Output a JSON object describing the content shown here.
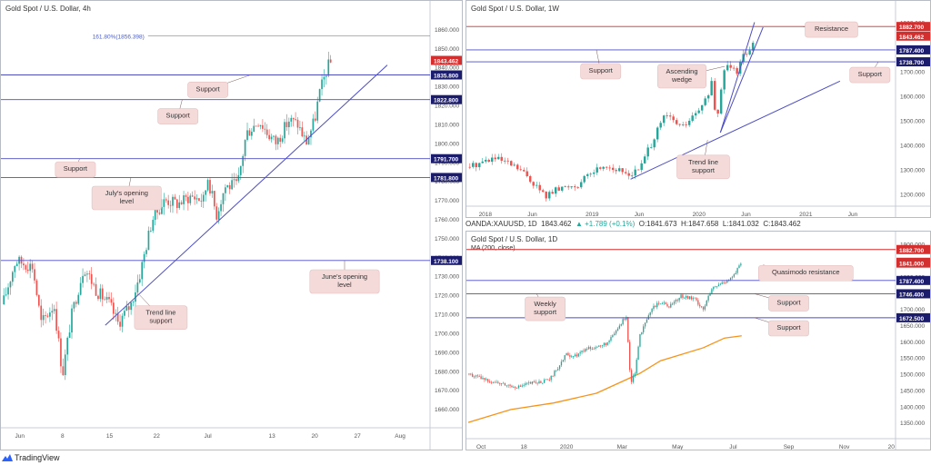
{
  "ohlc": {
    "symbol": "OANDA:XAUUSD, 1D",
    "price": "1843.462",
    "change": "▲ +1.789 (+0.1%)",
    "o": "O:1841.673",
    "h": "H:1847.658",
    "l": "L:1841.032",
    "c": "C:1843.462"
  },
  "footer": {
    "brand": "TradingView"
  },
  "colors": {
    "up": "#26a69a",
    "down": "#ef5350",
    "level": "#4d4dc4",
    "annotation": "#f5dada",
    "red": "#d32f2f",
    "navy": "#1c1c6c",
    "ma": "#f7931a"
  },
  "chart_data": [
    {
      "id": "h4",
      "type": "candlestick",
      "title": "Gold Spot / U.S. Dollar, 4h",
      "ylim": [
        1650,
        1870
      ],
      "y_ticks": [
        1660,
        1670,
        1680,
        1690,
        1700,
        1710,
        1720,
        1730,
        1740,
        1750,
        1760,
        1770,
        1780,
        1790,
        1800,
        1810,
        1820,
        1830,
        1840,
        1850,
        1860
      ],
      "x_ticks": [
        {
          "label": "Jun",
          "t": 0.04
        },
        {
          "label": "8",
          "t": 0.14
        },
        {
          "label": "15",
          "t": 0.25
        },
        {
          "label": "22",
          "t": 0.36
        },
        {
          "label": "Jul",
          "t": 0.48
        },
        {
          "label": "13",
          "t": 0.63
        },
        {
          "label": "20",
          "t": 0.73
        },
        {
          "label": "27",
          "t": 0.83
        },
        {
          "label": "Aug",
          "t": 0.93
        }
      ],
      "price_path": [
        [
          0,
          1715
        ],
        [
          0.03,
          1738
        ],
        [
          0.07,
          1735
        ],
        [
          0.09,
          1705
        ],
        [
          0.12,
          1715
        ],
        [
          0.14,
          1678
        ],
        [
          0.16,
          1708
        ],
        [
          0.19,
          1735
        ],
        [
          0.22,
          1722
        ],
        [
          0.25,
          1715
        ],
        [
          0.27,
          1705
        ],
        [
          0.3,
          1715
        ],
        [
          0.32,
          1730
        ],
        [
          0.35,
          1760
        ],
        [
          0.38,
          1770
        ],
        [
          0.41,
          1768
        ],
        [
          0.44,
          1772
        ],
        [
          0.47,
          1770
        ],
        [
          0.48,
          1782
        ],
        [
          0.5,
          1762
        ],
        [
          0.52,
          1777
        ],
        [
          0.55,
          1778
        ],
        [
          0.57,
          1805
        ],
        [
          0.6,
          1812
        ],
        [
          0.62,
          1805
        ],
        [
          0.64,
          1800
        ],
        [
          0.67,
          1812
        ],
        [
          0.69,
          1810
        ],
        [
          0.71,
          1800
        ],
        [
          0.73,
          1812
        ],
        [
          0.74,
          1825
        ],
        [
          0.76,
          1840
        ],
        [
          0.77,
          1843
        ]
      ],
      "candles_range": [
        0,
        0.77
      ],
      "levels": [
        {
          "value": 1843.462,
          "label": "1843.462",
          "style": "tag-red"
        },
        {
          "value": 1835.8,
          "label": "1835.800",
          "style": "line-navy"
        },
        {
          "value": 1822.8,
          "label": "1822.800",
          "style": "line-navy"
        },
        {
          "value": 1791.7,
          "label": "1791.700",
          "style": "line-navy"
        },
        {
          "value": 1781.8,
          "label": "1781.800",
          "style": "line-navy"
        },
        {
          "value": 1738.1,
          "label": "1738.100",
          "style": "line-navy"
        }
      ],
      "fib": {
        "value": 1856.398,
        "label": "161.80%(1856.398)",
        "from": 0.34,
        "to": 1.0
      },
      "trendlines": [
        {
          "from": [
            0.24,
            1704
          ],
          "to": [
            0.9,
            1841
          ]
        }
      ],
      "annotations": [
        {
          "text": "Support",
          "x": 0.48,
          "y": 1828,
          "pointer": [
            0.58,
            1835.8
          ]
        },
        {
          "text": "Support",
          "x": 0.41,
          "y": 1814,
          "pointer": [
            0.42,
            1822.8
          ]
        },
        {
          "text": "Support",
          "x": 0.17,
          "y": 1786,
          "pointer": [
            0.18,
            1791.7
          ]
        },
        {
          "text": "July's opening\nlevel",
          "x": 0.29,
          "y": 1771,
          "pointer": [
            0.3,
            1781.8
          ]
        },
        {
          "text": "June's opening\nlevel",
          "x": 0.8,
          "y": 1727,
          "pointer": [
            0.8,
            1738.1
          ]
        },
        {
          "text": "Trend line\nsupport",
          "x": 0.37,
          "y": 1708,
          "pointer": [
            0.32,
            1720
          ]
        }
      ]
    },
    {
      "id": "w1",
      "type": "candlestick",
      "title": "Gold Spot / U.S. Dollar, 1W",
      "ylim": [
        1150,
        1950
      ],
      "y_ticks": [
        1200,
        1300,
        1400,
        1500,
        1600,
        1700,
        1800,
        1900
      ],
      "x_ticks": [
        {
          "label": "2018",
          "t": 0.04
        },
        {
          "label": "Jun",
          "t": 0.15
        },
        {
          "label": "2019",
          "t": 0.29
        },
        {
          "label": "Jun",
          "t": 0.4
        },
        {
          "label": "2020",
          "t": 0.54
        },
        {
          "label": "Jun",
          "t": 0.65
        },
        {
          "label": "2021",
          "t": 0.79
        },
        {
          "label": "Jun",
          "t": 0.9
        }
      ],
      "price_path": [
        [
          0,
          1310
        ],
        [
          0.03,
          1330
        ],
        [
          0.06,
          1345
        ],
        [
          0.09,
          1325
        ],
        [
          0.12,
          1300
        ],
        [
          0.15,
          1250
        ],
        [
          0.18,
          1190
        ],
        [
          0.2,
          1210
        ],
        [
          0.23,
          1230
        ],
        [
          0.26,
          1240
        ],
        [
          0.29,
          1290
        ],
        [
          0.32,
          1320
        ],
        [
          0.35,
          1295
        ],
        [
          0.38,
          1280
        ],
        [
          0.4,
          1300
        ],
        [
          0.43,
          1410
        ],
        [
          0.46,
          1520
        ],
        [
          0.48,
          1500
        ],
        [
          0.5,
          1470
        ],
        [
          0.53,
          1520
        ],
        [
          0.55,
          1560
        ],
        [
          0.57,
          1650
        ],
        [
          0.58,
          1480
        ],
        [
          0.6,
          1720
        ],
        [
          0.62,
          1730
        ],
        [
          0.63,
          1700
        ],
        [
          0.64,
          1760
        ],
        [
          0.66,
          1800
        ],
        [
          0.67,
          1843
        ]
      ],
      "candles_range": [
        0,
        0.67
      ],
      "levels": [
        {
          "value": 1882.7,
          "label": "1882.700",
          "style": "line-red"
        },
        {
          "value": 1843.462,
          "label": "1843.462",
          "style": "tag-red"
        },
        {
          "value": 1787.4,
          "label": "1787.400",
          "style": "line-navy"
        },
        {
          "value": 1738.7,
          "label": "1738.700",
          "style": "line-navy"
        }
      ],
      "trendlines": [
        {
          "from": [
            0.38,
            1260
          ],
          "to": [
            0.87,
            1660
          ]
        },
        {
          "from": [
            0.59,
            1450
          ],
          "to": [
            0.67,
            1900
          ]
        },
        {
          "from": [
            0.59,
            1450
          ],
          "to": [
            0.69,
            1880
          ]
        }
      ],
      "annotations": [
        {
          "text": "Resistance",
          "x": 0.85,
          "y": 1870,
          "pointer": [
            0.78,
            1882.7
          ]
        },
        {
          "text": "Support",
          "x": 0.31,
          "y": 1700,
          "pointer": [
            0.3,
            1787.4
          ]
        },
        {
          "text": "Support",
          "x": 0.94,
          "y": 1685,
          "pointer": [
            0.96,
            1738.7
          ]
        },
        {
          "text": "Ascending\nwedge",
          "x": 0.5,
          "y": 1680,
          "pointer": [
            0.6,
            1720
          ]
        },
        {
          "text": "Trend line\nsupport",
          "x": 0.55,
          "y": 1310,
          "pointer": [
            0.56,
            1420
          ]
        }
      ]
    },
    {
      "id": "d1",
      "type": "candlestick",
      "title": "Gold Spot / U.S. Dollar, 1D",
      "ma_label": "MA (200, close)",
      "ylim": [
        1300,
        1910
      ],
      "y_ticks": [
        1350,
        1400,
        1450,
        1500,
        1550,
        1600,
        1650,
        1700,
        1750,
        1800,
        1850,
        1900
      ],
      "x_ticks": [
        {
          "label": "Oct",
          "t": 0.03
        },
        {
          "label": "18",
          "t": 0.13
        },
        {
          "label": "2020",
          "t": 0.23
        },
        {
          "label": "Mar",
          "t": 0.36
        },
        {
          "label": "May",
          "t": 0.49
        },
        {
          "label": "Jul",
          "t": 0.62
        },
        {
          "label": "Sep",
          "t": 0.75
        },
        {
          "label": "Nov",
          "t": 0.88
        },
        {
          "label": "20",
          "t": 0.99
        }
      ],
      "price_path": [
        [
          0,
          1500
        ],
        [
          0.03,
          1485
        ],
        [
          0.06,
          1475
        ],
        [
          0.09,
          1465
        ],
        [
          0.12,
          1460
        ],
        [
          0.14,
          1470
        ],
        [
          0.17,
          1475
        ],
        [
          0.19,
          1480
        ],
        [
          0.21,
          1520
        ],
        [
          0.23,
          1560
        ],
        [
          0.25,
          1555
        ],
        [
          0.28,
          1580
        ],
        [
          0.31,
          1585
        ],
        [
          0.33,
          1600
        ],
        [
          0.35,
          1640
        ],
        [
          0.37,
          1680
        ],
        [
          0.375,
          1580
        ],
        [
          0.38,
          1470
        ],
        [
          0.39,
          1500
        ],
        [
          0.4,
          1610
        ],
        [
          0.41,
          1640
        ],
        [
          0.43,
          1700
        ],
        [
          0.45,
          1720
        ],
        [
          0.47,
          1710
        ],
        [
          0.5,
          1740
        ],
        [
          0.53,
          1730
        ],
        [
          0.55,
          1700
        ],
        [
          0.57,
          1760
        ],
        [
          0.6,
          1785
        ],
        [
          0.62,
          1800
        ],
        [
          0.64,
          1843
        ]
      ],
      "candles_range": [
        0,
        0.64
      ],
      "ma": [
        [
          0,
          1350
        ],
        [
          0.1,
          1390
        ],
        [
          0.2,
          1410
        ],
        [
          0.3,
          1440
        ],
        [
          0.35,
          1470
        ],
        [
          0.4,
          1500
        ],
        [
          0.45,
          1540
        ],
        [
          0.5,
          1560
        ],
        [
          0.55,
          1580
        ],
        [
          0.6,
          1610
        ],
        [
          0.64,
          1617
        ]
      ],
      "levels": [
        {
          "value": 1882.7,
          "label": "1882.700",
          "style": "line-red"
        },
        {
          "value": 1843.462,
          "label": "1843.462",
          "style": "tag-red"
        },
        {
          "value": 1841.0,
          "label": "1841.000",
          "style": "tag-red"
        },
        {
          "value": 1787.4,
          "label": "1787.400",
          "style": "line-navy"
        },
        {
          "value": 1746.4,
          "label": "1746.400",
          "style": "line-navy"
        },
        {
          "value": 1672.5,
          "label": "1672.500",
          "style": "line-navy"
        }
      ],
      "annotations": [
        {
          "text": "Quasimodo resistance",
          "x": 0.79,
          "y": 1810,
          "pointer": [
            0.69,
            1835
          ]
        },
        {
          "text": "Weekly\nsupport",
          "x": 0.18,
          "y": 1700,
          "pointer": [
            0.16,
            1746.4
          ]
        },
        {
          "text": "Support",
          "x": 0.75,
          "y": 1717,
          "pointer": [
            0.67,
            1746.4
          ]
        },
        {
          "text": "Support",
          "x": 0.75,
          "y": 1640,
          "pointer": [
            0.67,
            1672.5
          ]
        }
      ]
    }
  ]
}
